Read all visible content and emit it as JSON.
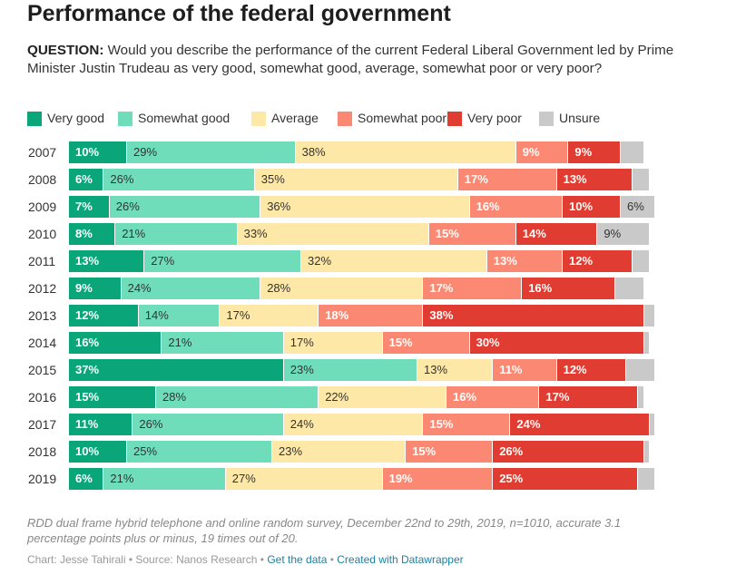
{
  "title": "Performance of the federal government",
  "question": {
    "label": "QUESTION:",
    "text": "Would you describe the performance of the current Federal Liberal Government led by Prime Minister Justin Trudeau as very good, somewhat good, average, somewhat poor or very poor?"
  },
  "chart_data": {
    "type": "bar",
    "orientation": "horizontal",
    "stacked": true,
    "unit": "%",
    "categories": [
      "2007",
      "2008",
      "2009",
      "2010",
      "2011",
      "2012",
      "2013",
      "2014",
      "2015",
      "2016",
      "2017",
      "2018",
      "2019"
    ],
    "series": [
      {
        "name": "Very good",
        "color": "#0aa67a",
        "label_style": "dark",
        "values": [
          10,
          6,
          7,
          8,
          13,
          9,
          12,
          16,
          37,
          15,
          11,
          10,
          6
        ]
      },
      {
        "name": "Somewhat good",
        "color": "#6fdcba",
        "label_style": "light",
        "values": [
          29,
          26,
          26,
          21,
          27,
          24,
          14,
          21,
          23,
          28,
          26,
          25,
          21
        ]
      },
      {
        "name": "Average",
        "color": "#fde8a8",
        "label_style": "light",
        "values": [
          38,
          35,
          36,
          33,
          32,
          28,
          17,
          17,
          13,
          22,
          24,
          23,
          27
        ]
      },
      {
        "name": "Somewhat poor",
        "color": "#fb8872",
        "label_style": "dark",
        "values": [
          9,
          17,
          16,
          15,
          13,
          17,
          18,
          15,
          11,
          16,
          15,
          15,
          19
        ]
      },
      {
        "name": "Very poor",
        "color": "#e03c31",
        "label_style": "dark",
        "values": [
          9,
          13,
          10,
          14,
          12,
          16,
          38,
          30,
          12,
          17,
          24,
          26,
          25
        ]
      },
      {
        "name": "Unsure",
        "color": "#c9c9c9",
        "label_style": "light",
        "values": [
          4,
          3,
          6,
          9,
          3,
          5,
          2,
          1,
          5,
          1,
          1,
          1,
          3
        ]
      }
    ],
    "visible_labels": [
      [
        "10%",
        "29%",
        "38%",
        "9%",
        "9%",
        ""
      ],
      [
        "6%",
        "26%",
        "35%",
        "17%",
        "13%",
        ""
      ],
      [
        "7%",
        "26%",
        "36%",
        "16%",
        "10%",
        "6%"
      ],
      [
        "8%",
        "21%",
        "33%",
        "15%",
        "14%",
        "9%"
      ],
      [
        "13%",
        "27%",
        "32%",
        "13%",
        "12%",
        ""
      ],
      [
        "9%",
        "24%",
        "28%",
        "17%",
        "16%",
        ""
      ],
      [
        "12%",
        "14%",
        "17%",
        "18%",
        "38%",
        ""
      ],
      [
        "16%",
        "21%",
        "17%",
        "15%",
        "30%",
        ""
      ],
      [
        "37%",
        "23%",
        "13%",
        "11%",
        "12%",
        ""
      ],
      [
        "15%",
        "28%",
        "22%",
        "16%",
        "17%",
        ""
      ],
      [
        "11%",
        "26%",
        "24%",
        "15%",
        "24%",
        ""
      ],
      [
        "10%",
        "25%",
        "23%",
        "15%",
        "26%",
        ""
      ],
      [
        "6%",
        "21%",
        "27%",
        "19%",
        "25%",
        ""
      ]
    ],
    "xlim": [
      0,
      100
    ]
  },
  "note": "RDD dual frame hybrid telephone and online random survey, December 22nd to 29th, 2019, n=1010, accurate 3.1 percentage points plus or minus, 19 times out of 20.",
  "footer": {
    "chart_by": "Chart: Jesse Tahirali",
    "source": "Source: Nanos Research",
    "get_data": "Get the data",
    "created_with": "Created with Datawrapper",
    "separator": " • "
  }
}
